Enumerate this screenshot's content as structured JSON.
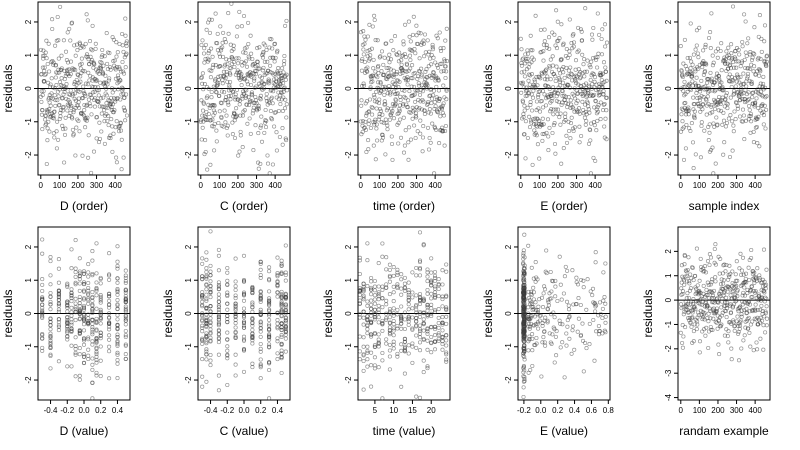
{
  "chart_data": [
    {
      "type": "scatter",
      "xlabel": "D (order)",
      "ylabel": "residuals",
      "xlim": [
        -15,
        480
      ],
      "ylim": [
        -2.6,
        2.6
      ],
      "xticks": [
        0,
        100,
        200,
        300,
        400
      ],
      "xtick_labels": [
        "0",
        "100",
        "200",
        "300",
        "400"
      ],
      "yticks": [
        -2,
        -1,
        0,
        1,
        2
      ],
      "ytick_labels": [
        "-2",
        "-1",
        "0",
        "1",
        "2"
      ],
      "hline": 0,
      "pattern": "order",
      "seed": 11,
      "n": 460
    },
    {
      "type": "scatter",
      "xlabel": "C (order)",
      "ylabel": "residuals",
      "xlim": [
        -15,
        480
      ],
      "ylim": [
        -2.6,
        2.6
      ],
      "xticks": [
        0,
        100,
        200,
        300,
        400
      ],
      "xtick_labels": [
        "0",
        "100",
        "200",
        "300",
        "400"
      ],
      "yticks": [
        -2,
        -1,
        0,
        1,
        2
      ],
      "ytick_labels": [
        "-2",
        "-1",
        "0",
        "1",
        "2"
      ],
      "hline": 0,
      "pattern": "order",
      "seed": 23,
      "n": 460
    },
    {
      "type": "scatter",
      "xlabel": "time (order)",
      "ylabel": "residuals",
      "xlim": [
        -15,
        480
      ],
      "ylim": [
        -2.6,
        2.6
      ],
      "xticks": [
        0,
        100,
        200,
        300,
        400
      ],
      "xtick_labels": [
        "0",
        "100",
        "200",
        "300",
        "400"
      ],
      "yticks": [
        -2,
        -1,
        0,
        1,
        2
      ],
      "ytick_labels": [
        "-2",
        "-1",
        "0",
        "1",
        "2"
      ],
      "hline": 0,
      "pattern": "order",
      "seed": 37,
      "n": 460
    },
    {
      "type": "scatter",
      "xlabel": "E (order)",
      "ylabel": "residuals",
      "xlim": [
        -15,
        480
      ],
      "ylim": [
        -2.6,
        2.6
      ],
      "xticks": [
        0,
        100,
        200,
        300,
        400
      ],
      "xtick_labels": [
        "0",
        "100",
        "200",
        "300",
        "400"
      ],
      "yticks": [
        -2,
        -1,
        0,
        1,
        2
      ],
      "ytick_labels": [
        "-2",
        "-1",
        "0",
        "1",
        "2"
      ],
      "hline": 0,
      "pattern": "order",
      "seed": 41,
      "n": 460
    },
    {
      "type": "scatter",
      "xlabel": "sample index",
      "ylabel": "residuals",
      "xlim": [
        -15,
        480
      ],
      "ylim": [
        -2.6,
        2.6
      ],
      "xticks": [
        0,
        100,
        200,
        300,
        400
      ],
      "xtick_labels": [
        "0",
        "100",
        "200",
        "300",
        "400"
      ],
      "yticks": [
        -2,
        -1,
        0,
        1,
        2
      ],
      "ytick_labels": [
        "-2",
        "-1",
        "0",
        "1",
        "2"
      ],
      "hline": 0,
      "pattern": "order",
      "seed": 53,
      "n": 460
    },
    {
      "type": "scatter",
      "xlabel": "D (value)",
      "ylabel": "residuals",
      "xlim": [
        -0.55,
        0.55
      ],
      "ylim": [
        -2.6,
        2.6
      ],
      "xticks": [
        -0.4,
        -0.2,
        0.0,
        0.2,
        0.4
      ],
      "xtick_labels": [
        "-0.4",
        "-0.2",
        "0.0",
        "0.2",
        "0.4"
      ],
      "yticks": [
        -2,
        -1,
        0,
        1,
        2
      ],
      "ytick_labels": [
        "-2",
        "-1",
        "0",
        "1",
        "2"
      ],
      "hline": 0,
      "pattern": "discrete",
      "x_levels": [
        -0.5,
        -0.4,
        -0.3,
        -0.2,
        -0.15,
        -0.1,
        -0.05,
        0.0,
        0.05,
        0.1,
        0.15,
        0.2,
        0.3,
        0.4,
        0.5
      ],
      "seed": 61,
      "n": 420
    },
    {
      "type": "scatter",
      "xlabel": "C (value)",
      "ylabel": "residuals",
      "xlim": [
        -0.55,
        0.55
      ],
      "ylim": [
        -2.6,
        2.6
      ],
      "xticks": [
        -0.4,
        -0.2,
        0.0,
        0.2,
        0.4
      ],
      "xtick_labels": [
        "-0.4",
        "-0.2",
        "0.0",
        "0.2",
        "0.4"
      ],
      "yticks": [
        -2,
        -1,
        0,
        1,
        2
      ],
      "ytick_labels": [
        "-2",
        "-1",
        "0",
        "1",
        "2"
      ],
      "hline": 0,
      "pattern": "discrete",
      "x_levels": [
        -0.5,
        -0.45,
        -0.4,
        -0.3,
        -0.2,
        -0.1,
        0.0,
        0.1,
        0.2,
        0.3,
        0.4,
        0.45,
        0.5
      ],
      "seed": 71,
      "n": 420
    },
    {
      "type": "scatter",
      "xlabel": "time (value)",
      "ylabel": "residuals",
      "xlim": [
        0.5,
        25
      ],
      "ylim": [
        -2.6,
        2.6
      ],
      "xticks": [
        5,
        10,
        15,
        20
      ],
      "xtick_labels": [
        "5",
        "10",
        "15",
        "20"
      ],
      "yticks": [
        -2,
        -1,
        0,
        1,
        2
      ],
      "ytick_labels": [
        "-2",
        "-1",
        "0",
        "1",
        "2"
      ],
      "hline": 0,
      "pattern": "discrete",
      "x_levels": [
        1,
        2,
        3,
        4,
        5,
        6,
        7,
        8,
        9,
        10,
        11,
        12,
        13,
        14,
        15,
        16,
        17,
        18,
        19,
        20,
        21,
        22,
        23,
        24
      ],
      "seed": 83,
      "n": 420
    },
    {
      "type": "scatter",
      "xlabel": "E (value)",
      "ylabel": "residuals",
      "xlim": [
        -0.27,
        0.82
      ],
      "ylim": [
        -2.6,
        2.6
      ],
      "xticks": [
        -0.2,
        0.0,
        0.2,
        0.4,
        0.6,
        0.8
      ],
      "xtick_labels": [
        "-0.2",
        "0.0",
        "0.2",
        "0.4",
        "0.6",
        "0.8"
      ],
      "yticks": [
        -2,
        -1,
        0,
        1,
        2
      ],
      "ytick_labels": [
        "-2",
        "-1",
        "0",
        "1",
        "2"
      ],
      "hline": 0,
      "pattern": "skewed",
      "seed": 97,
      "n": 420
    },
    {
      "type": "scatter",
      "xlabel": "randam example",
      "ylabel": "residuals",
      "xlim": [
        -15,
        480
      ],
      "ylim": [
        -4.1,
        3.0
      ],
      "xticks": [
        0,
        100,
        200,
        300,
        400
      ],
      "xtick_labels": [
        "0",
        "100",
        "200",
        "300",
        "400"
      ],
      "yticks": [
        -4,
        -3,
        -2,
        -1,
        0,
        1,
        2
      ],
      "ytick_labels": [
        "-4",
        "-3",
        "-2",
        "-1",
        "0",
        "1",
        "2"
      ],
      "hline": 0,
      "pattern": "order",
      "seed": 101,
      "n": 460
    }
  ]
}
